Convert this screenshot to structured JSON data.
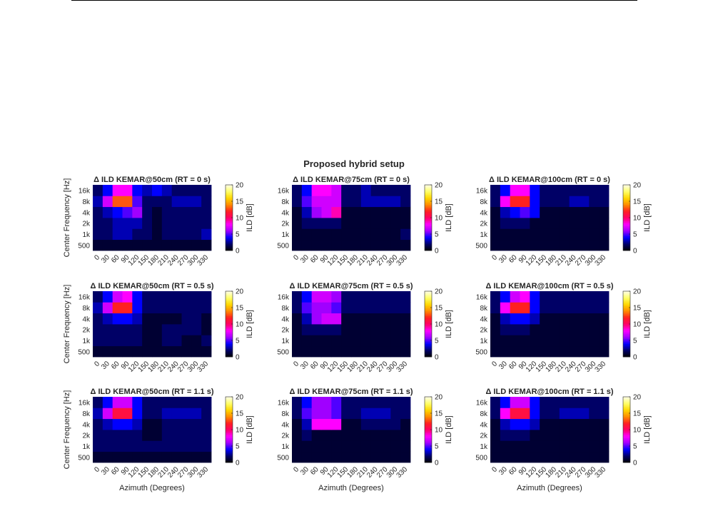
{
  "figure": {
    "title": "Proposed hybrid setup",
    "colormap": [
      "#000000",
      "#000066",
      "#0000ff",
      "#a000ff",
      "#ff00ff",
      "#ff0066",
      "#ff2020",
      "#ff8c00",
      "#ffd700",
      "#ffff66",
      "#ffffe6"
    ]
  },
  "chart_data": [
    {
      "type": "heatmap",
      "title": "Δ ILD KEMAR@50cm (RT = 0 s)",
      "xlabel": "",
      "ylabel": "Center Frequency [Hz]",
      "x": [
        0,
        30,
        60,
        90,
        120,
        150,
        180,
        210,
        240,
        270,
        300,
        330
      ],
      "y": [
        "500",
        "1k",
        "2k",
        "4k",
        "8k",
        "16k"
      ],
      "colorbar": {
        "label": "ILD [dB]",
        "range": [
          0,
          20
        ],
        "ticks": [
          0,
          5,
          10,
          15,
          20
        ]
      },
      "values": [
        [
          1,
          1,
          1,
          1,
          1,
          1,
          1,
          1,
          1,
          1,
          1,
          1
        ],
        [
          2,
          2,
          3,
          3,
          2,
          2,
          1,
          2,
          2,
          2,
          2,
          3
        ],
        [
          2,
          2,
          3,
          3,
          3,
          2,
          1,
          2,
          2,
          2,
          2,
          2
        ],
        [
          2,
          3,
          4,
          5,
          6,
          2,
          1,
          2,
          2,
          2,
          2,
          2
        ],
        [
          3,
          7,
          13,
          13,
          5,
          2,
          2,
          2,
          3,
          3,
          3,
          2
        ],
        [
          2,
          4,
          8,
          8,
          4,
          3,
          4,
          3,
          2,
          2,
          2,
          2
        ]
      ]
    },
    {
      "type": "heatmap",
      "title": "Δ ILD KEMAR@75cm (RT = 0 s)",
      "xlabel": "",
      "ylabel": "",
      "x": [
        0,
        30,
        60,
        90,
        120,
        150,
        180,
        210,
        240,
        270,
        300,
        330
      ],
      "y": [
        "500",
        "1k",
        "2k",
        "4k",
        "8k",
        "16k"
      ],
      "colorbar": {
        "label": "ILD [dB]",
        "range": [
          0,
          20
        ],
        "ticks": [
          0,
          5,
          10,
          15,
          20
        ]
      },
      "values": [
        [
          1,
          1,
          1,
          1,
          1,
          1,
          1,
          1,
          1,
          1,
          1,
          1
        ],
        [
          1,
          1,
          1,
          1,
          1,
          1,
          1,
          1,
          1,
          1,
          1,
          2
        ],
        [
          1,
          2,
          2,
          2,
          2,
          1,
          1,
          1,
          1,
          1,
          1,
          1
        ],
        [
          1,
          3,
          6,
          7,
          9,
          1,
          1,
          1,
          1,
          1,
          1,
          1
        ],
        [
          2,
          5,
          7,
          7,
          7,
          2,
          2,
          3,
          3,
          3,
          3,
          2
        ],
        [
          2,
          4,
          8,
          8,
          7,
          2,
          2,
          3,
          2,
          2,
          2,
          2
        ]
      ]
    },
    {
      "type": "heatmap",
      "title": "Δ ILD KEMAR@100cm (RT = 0 s)",
      "xlabel": "",
      "ylabel": "",
      "x": [
        0,
        30,
        60,
        90,
        120,
        150,
        180,
        210,
        240,
        270,
        300,
        330
      ],
      "y": [
        "500",
        "1k",
        "2k",
        "4k",
        "8k",
        "16k"
      ],
      "colorbar": {
        "label": "ILD [dB]",
        "range": [
          0,
          20
        ],
        "ticks": [
          0,
          5,
          10,
          15,
          20
        ]
      },
      "values": [
        [
          1,
          1,
          1,
          1,
          1,
          1,
          1,
          1,
          1,
          1,
          1,
          1
        ],
        [
          1,
          1,
          1,
          1,
          1,
          1,
          1,
          1,
          1,
          1,
          1,
          1
        ],
        [
          1,
          2,
          2,
          2,
          1,
          1,
          1,
          1,
          1,
          1,
          1,
          1
        ],
        [
          1,
          3,
          4,
          5,
          4,
          1,
          1,
          1,
          1,
          1,
          1,
          1
        ],
        [
          2,
          8,
          12,
          12,
          4,
          2,
          2,
          2,
          3,
          3,
          2,
          2
        ],
        [
          2,
          4,
          8,
          8,
          4,
          2,
          2,
          2,
          2,
          2,
          2,
          2
        ]
      ]
    },
    {
      "type": "heatmap",
      "title": "Δ ILD KEMAR@50cm (RT = 0.5 s)",
      "xlabel": "",
      "ylabel": "Center Frequency [Hz]",
      "x": [
        0,
        30,
        60,
        90,
        120,
        150,
        180,
        210,
        240,
        270,
        300,
        330
      ],
      "y": [
        "500",
        "1k",
        "2k",
        "4k",
        "8k",
        "16k"
      ],
      "colorbar": {
        "label": "ILD [dB]",
        "range": [
          0,
          20
        ],
        "ticks": [
          0,
          5,
          10,
          15,
          20
        ]
      },
      "values": [
        [
          1,
          1,
          1,
          1,
          1,
          1,
          1,
          1,
          1,
          1,
          1,
          1
        ],
        [
          2,
          2,
          2,
          2,
          2,
          1,
          1,
          2,
          2,
          1,
          1,
          2
        ],
        [
          2,
          2,
          2,
          2,
          2,
          1,
          1,
          2,
          2,
          2,
          2,
          1
        ],
        [
          2,
          3,
          4,
          4,
          3,
          1,
          1,
          1,
          1,
          2,
          2,
          1
        ],
        [
          3,
          7,
          12,
          12,
          4,
          2,
          2,
          2,
          2,
          2,
          2,
          2
        ],
        [
          2,
          4,
          7,
          8,
          4,
          2,
          2,
          2,
          2,
          2,
          2,
          2
        ]
      ]
    },
    {
      "type": "heatmap",
      "title": "Δ ILD KEMAR@75cm (RT = 0.5 s)",
      "xlabel": "",
      "ylabel": "",
      "x": [
        0,
        30,
        60,
        90,
        120,
        150,
        180,
        210,
        240,
        270,
        300,
        330
      ],
      "y": [
        "500",
        "1k",
        "2k",
        "4k",
        "8k",
        "16k"
      ],
      "colorbar": {
        "label": "ILD [dB]",
        "range": [
          0,
          20
        ],
        "ticks": [
          0,
          5,
          10,
          15,
          20
        ]
      },
      "values": [
        [
          1,
          1,
          1,
          1,
          1,
          1,
          1,
          1,
          1,
          1,
          1,
          1
        ],
        [
          1,
          1,
          1,
          1,
          1,
          1,
          1,
          1,
          1,
          1,
          1,
          1
        ],
        [
          1,
          2,
          2,
          2,
          2,
          1,
          1,
          1,
          1,
          1,
          1,
          1
        ],
        [
          1,
          3,
          6,
          7,
          7,
          1,
          1,
          1,
          1,
          1,
          1,
          1
        ],
        [
          2,
          5,
          6,
          6,
          5,
          2,
          2,
          2,
          2,
          2,
          2,
          2
        ],
        [
          2,
          4,
          7,
          7,
          6,
          2,
          2,
          2,
          2,
          2,
          2,
          2
        ]
      ]
    },
    {
      "type": "heatmap",
      "title": "Δ ILD KEMAR@100cm (RT = 0.5 s)",
      "xlabel": "",
      "ylabel": "",
      "x": [
        0,
        30,
        60,
        90,
        120,
        150,
        180,
        210,
        240,
        270,
        300,
        330
      ],
      "y": [
        "500",
        "1k",
        "2k",
        "4k",
        "8k",
        "16k"
      ],
      "colorbar": {
        "label": "ILD [dB]",
        "range": [
          0,
          20
        ],
        "ticks": [
          0,
          5,
          10,
          15,
          20
        ]
      },
      "values": [
        [
          1,
          1,
          1,
          1,
          1,
          1,
          1,
          1,
          1,
          1,
          1,
          1
        ],
        [
          1,
          1,
          1,
          1,
          1,
          1,
          1,
          1,
          1,
          1,
          1,
          1
        ],
        [
          1,
          2,
          2,
          2,
          1,
          1,
          1,
          1,
          1,
          1,
          1,
          1
        ],
        [
          1,
          3,
          4,
          4,
          3,
          1,
          1,
          1,
          1,
          1,
          1,
          1
        ],
        [
          2,
          8,
          12,
          12,
          4,
          2,
          2,
          2,
          2,
          2,
          2,
          2
        ],
        [
          2,
          4,
          7,
          8,
          4,
          2,
          2,
          2,
          2,
          2,
          2,
          2
        ]
      ]
    },
    {
      "type": "heatmap",
      "title": "Δ ILD KEMAR@50cm (RT = 1.1 s)",
      "xlabel": "Azimuth (Degrees)",
      "ylabel": "Center Frequency [Hz]",
      "x": [
        0,
        30,
        60,
        90,
        120,
        150,
        180,
        210,
        240,
        270,
        300,
        330
      ],
      "y": [
        "500",
        "1k",
        "2k",
        "4k",
        "8k",
        "16k"
      ],
      "colorbar": {
        "label": "ILD [dB]",
        "range": [
          0,
          20
        ],
        "ticks": [
          0,
          5,
          10,
          15,
          20
        ]
      },
      "values": [
        [
          1,
          1,
          1,
          1,
          1,
          1,
          1,
          1,
          1,
          1,
          1,
          1
        ],
        [
          2,
          2,
          2,
          2,
          2,
          2,
          2,
          2,
          2,
          2,
          2,
          2
        ],
        [
          2,
          2,
          2,
          2,
          2,
          1,
          1,
          2,
          2,
          2,
          2,
          2
        ],
        [
          2,
          3,
          4,
          4,
          3,
          1,
          1,
          2,
          2,
          2,
          2,
          2
        ],
        [
          3,
          7,
          11,
          11,
          4,
          2,
          2,
          3,
          3,
          3,
          3,
          2
        ],
        [
          2,
          4,
          7,
          7,
          4,
          2,
          2,
          2,
          2,
          2,
          2,
          2
        ]
      ]
    },
    {
      "type": "heatmap",
      "title": "Δ ILD KEMAR@75cm (RT = 1.1 s)",
      "xlabel": "Azimuth (Degrees)",
      "ylabel": "",
      "x": [
        0,
        30,
        60,
        90,
        120,
        150,
        180,
        210,
        240,
        270,
        300,
        330
      ],
      "y": [
        "500",
        "1k",
        "2k",
        "4k",
        "8k",
        "16k"
      ],
      "colorbar": {
        "label": "ILD [dB]",
        "range": [
          0,
          20
        ],
        "ticks": [
          0,
          5,
          10,
          15,
          20
        ]
      },
      "values": [
        [
          1,
          1,
          1,
          1,
          1,
          1,
          1,
          1,
          1,
          1,
          1,
          1
        ],
        [
          1,
          1,
          1,
          1,
          1,
          1,
          1,
          1,
          1,
          1,
          1,
          1
        ],
        [
          1,
          2,
          1,
          1,
          1,
          1,
          1,
          1,
          1,
          1,
          1,
          1
        ],
        [
          1,
          3,
          8,
          8,
          8,
          1,
          1,
          2,
          2,
          2,
          2,
          1
        ],
        [
          2,
          5,
          6,
          6,
          5,
          2,
          2,
          3,
          3,
          3,
          2,
          2
        ],
        [
          2,
          4,
          6,
          6,
          5,
          2,
          2,
          2,
          2,
          2,
          2,
          2
        ]
      ]
    },
    {
      "type": "heatmap",
      "title": "Δ ILD KEMAR@100cm (RT = 1.1 s)",
      "xlabel": "Azimuth (Degrees)",
      "ylabel": "",
      "x": [
        0,
        30,
        60,
        90,
        120,
        150,
        180,
        210,
        240,
        270,
        300,
        330
      ],
      "y": [
        "500",
        "1k",
        "2k",
        "4k",
        "8k",
        "16k"
      ],
      "colorbar": {
        "label": "ILD [dB]",
        "range": [
          0,
          20
        ],
        "ticks": [
          0,
          5,
          10,
          15,
          20
        ]
      },
      "values": [
        [
          1,
          1,
          1,
          1,
          1,
          1,
          1,
          1,
          1,
          1,
          1,
          1
        ],
        [
          1,
          1,
          1,
          1,
          1,
          1,
          1,
          1,
          1,
          1,
          1,
          1
        ],
        [
          1,
          2,
          2,
          2,
          1,
          1,
          1,
          1,
          1,
          1,
          1,
          1
        ],
        [
          1,
          3,
          4,
          4,
          3,
          1,
          1,
          1,
          1,
          1,
          1,
          1
        ],
        [
          2,
          8,
          11,
          11,
          4,
          2,
          2,
          3,
          3,
          3,
          2,
          2
        ],
        [
          2,
          4,
          7,
          7,
          4,
          2,
          2,
          2,
          2,
          2,
          2,
          2
        ]
      ]
    }
  ]
}
